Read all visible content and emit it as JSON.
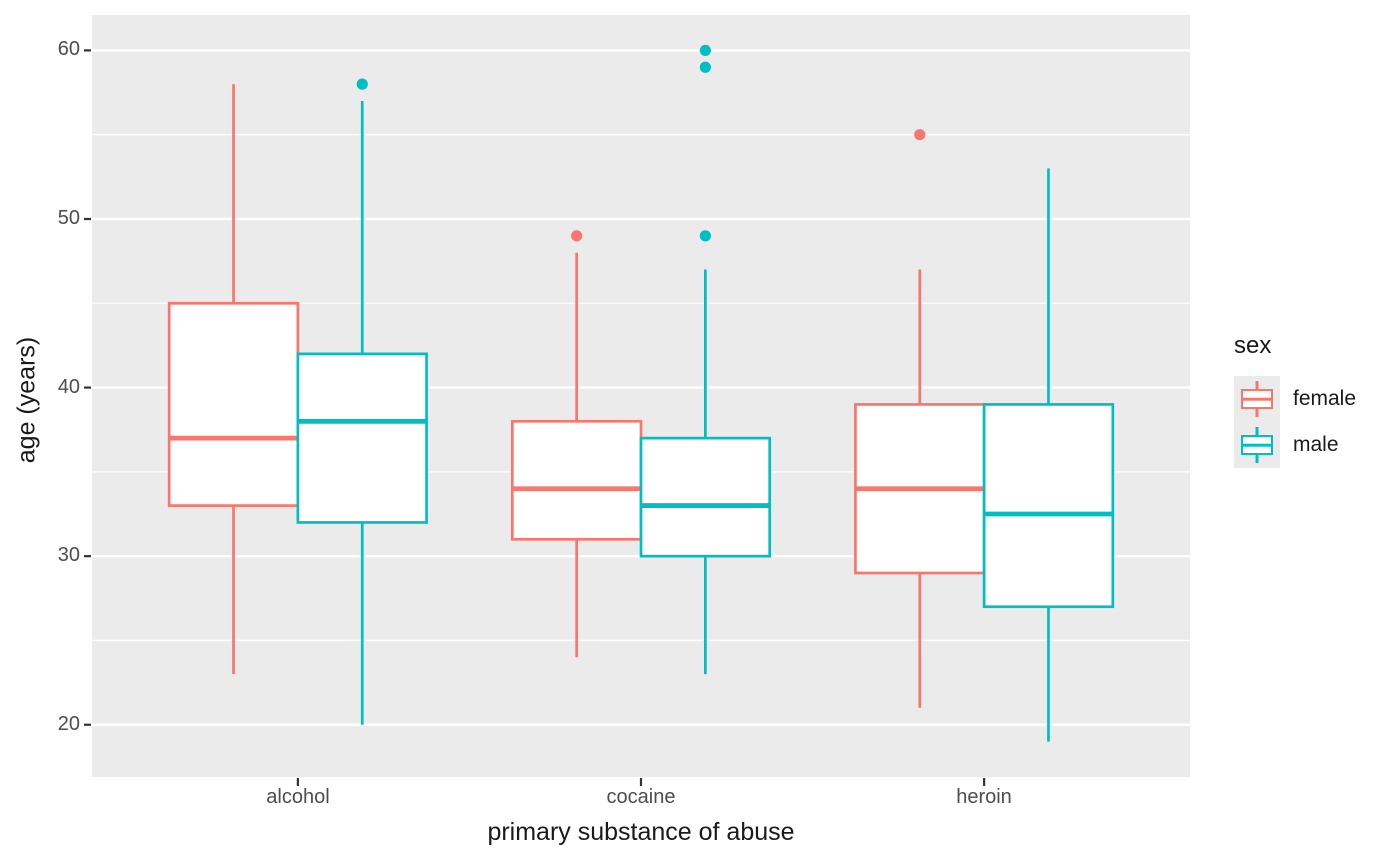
{
  "figure": {
    "background": "#FFFFFF",
    "panel_bg": "#EBEBEB",
    "grid_color": "#FFFFFF",
    "axis_tick_color": "#333333",
    "tick_label_color": "#4D4D4D",
    "axis_title_color": "#1A1A1A"
  },
  "chart_data": {
    "type": "boxplot",
    "title": "",
    "xlabel": "primary substance of abuse",
    "ylabel": "age (years)",
    "categories": [
      "alcohol",
      "cocaine",
      "heroin"
    ],
    "y_ticks": [
      20,
      30,
      40,
      50,
      60
    ],
    "y_minor_ticks": [
      25,
      35,
      45,
      55
    ],
    "ylim": [
      16.9,
      62.1
    ],
    "grid": true,
    "legend": {
      "title": "sex",
      "position": "right",
      "entries": [
        {
          "label": "female",
          "color": "#F8766D"
        },
        {
          "label": "male",
          "color": "#00BFC4"
        }
      ]
    },
    "series": [
      {
        "name": "female",
        "color": "#F8766D",
        "boxes": [
          {
            "category": "alcohol",
            "whisker_low": 23,
            "q1": 33,
            "median": 37,
            "q3": 45,
            "whisker_high": 58,
            "outliers": []
          },
          {
            "category": "cocaine",
            "whisker_low": 24,
            "q1": 31,
            "median": 34,
            "q3": 38,
            "whisker_high": 48,
            "outliers": [
              49
            ]
          },
          {
            "category": "heroin",
            "whisker_low": 21,
            "q1": 29,
            "median": 34,
            "q3": 39,
            "whisker_high": 47,
            "outliers": [
              55
            ]
          }
        ]
      },
      {
        "name": "male",
        "color": "#00BFC4",
        "boxes": [
          {
            "category": "alcohol",
            "whisker_low": 20,
            "q1": 32,
            "median": 38,
            "q3": 42,
            "whisker_high": 57,
            "outliers": [
              58
            ]
          },
          {
            "category": "cocaine",
            "whisker_low": 23,
            "q1": 30,
            "median": 33,
            "q3": 37,
            "whisker_high": 47,
            "outliers": [
              49,
              59,
              60
            ]
          },
          {
            "category": "heroin",
            "whisker_low": 19,
            "q1": 27,
            "median": 32.5,
            "q3": 39,
            "whisker_high": 53,
            "outliers": []
          }
        ]
      }
    ]
  }
}
